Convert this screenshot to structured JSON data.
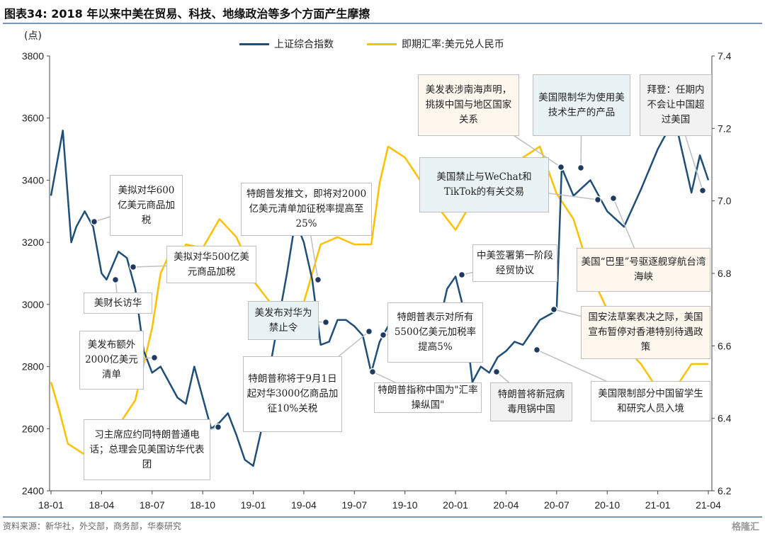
{
  "title": "图表34:  2018 年以来中美在贸易、科技、地缘政治等多个方面产生摩擦",
  "source": "资料来源：新华社，外交部，商务部，华泰研究",
  "watermark": "格隆汇",
  "chart_data": {
    "type": "line",
    "ylabel_left": "(点)",
    "ylim_left": [
      2400,
      3800
    ],
    "yticks_left": [
      2400,
      2600,
      2800,
      3000,
      3200,
      3400,
      3600,
      3800
    ],
    "ylim_right": [
      6.2,
      7.4
    ],
    "yticks_right": [
      "6.2",
      "6.4",
      "6.6",
      "6.8",
      "7.0",
      "7.2",
      "7.4"
    ],
    "xticks": [
      "18-01",
      "18-04",
      "18-07",
      "18-10",
      "19-01",
      "19-04",
      "19-07",
      "19-10",
      "20-01",
      "20-04",
      "20-07",
      "20-10",
      "21-01",
      "21-04"
    ],
    "x_unit": "months since 2018-01",
    "colors": {
      "sse": "#1f4e79",
      "cny": "#ffc000"
    },
    "series": [
      {
        "name": "上证综合指数",
        "axis": "left",
        "x": [
          0,
          0.7,
          1.2,
          1.5,
          2,
          2.5,
          3,
          3.3,
          4,
          4.5,
          5,
          5.5,
          6,
          6.5,
          7,
          7.5,
          8,
          8.5,
          9,
          9.5,
          10,
          10.5,
          11,
          11.5,
          12,
          12.5,
          13,
          14,
          14.5,
          15,
          15.5,
          16,
          16.5,
          17,
          17.5,
          18,
          18.5,
          19,
          19.5,
          20,
          21,
          21.5,
          22,
          22.5,
          23,
          23.5,
          24,
          24.5,
          25,
          25.5,
          26,
          26.5,
          27,
          27.5,
          28,
          29,
          30,
          30.3,
          31,
          32,
          33,
          34,
          35,
          36,
          37,
          37.5,
          38,
          38.5,
          39
        ],
        "values": [
          3350,
          3560,
          3200,
          3250,
          3300,
          3250,
          3100,
          3080,
          3170,
          3150,
          3050,
          2850,
          2780,
          2800,
          2750,
          2700,
          2680,
          2800,
          2700,
          2600,
          2620,
          2650,
          2580,
          2500,
          2480,
          2600,
          2800,
          3100,
          3270,
          3200,
          3080,
          2870,
          2880,
          2950,
          2950,
          2930,
          2900,
          2780,
          2880,
          2930,
          2950,
          2900,
          2880,
          2950,
          2930,
          3050,
          3090,
          2980,
          2750,
          2800,
          2780,
          2830,
          2850,
          2880,
          2870,
          2950,
          2980,
          3440,
          3350,
          3400,
          3300,
          3250,
          3370,
          3500,
          3600,
          3480,
          3360,
          3480,
          3400
        ]
      },
      {
        "name": "即期汇率:美元兑人民币",
        "axis": "right",
        "x": [
          0,
          0.5,
          1,
          2,
          3,
          3.5,
          4,
          5,
          6,
          6.5,
          7,
          7.5,
          8,
          9,
          10,
          11,
          11.5,
          12,
          13,
          14,
          15,
          16,
          17,
          18,
          19,
          19.5,
          20,
          21,
          22,
          23,
          24,
          25,
          26,
          27,
          28,
          29,
          30,
          31,
          32,
          33,
          34,
          35,
          36,
          37,
          38,
          39
        ],
        "values": [
          6.5,
          6.42,
          6.33,
          6.3,
          6.28,
          6.3,
          6.38,
          6.45,
          6.65,
          6.8,
          6.85,
          6.82,
          6.88,
          6.87,
          6.95,
          6.9,
          6.85,
          6.78,
          6.72,
          6.7,
          6.72,
          6.88,
          6.9,
          6.88,
          6.88,
          7.05,
          7.15,
          7.12,
          7.05,
          6.98,
          6.92,
          7.0,
          7.08,
          7.08,
          7.12,
          7.15,
          7.02,
          6.95,
          6.8,
          6.7,
          6.6,
          6.55,
          6.48,
          6.48,
          6.55,
          6.55
        ]
      }
    ],
    "annotations": [
      "美拟对华600亿美元商品加税",
      "美财长访华",
      "美拟对华500亿美元商品加税",
      "美发布额外2000亿美元清单",
      "习主席应约同特朗普通电话；总理会见美国访华代表团",
      "特朗普发推文，即将对2000亿美元清单加征税率提高至25%",
      "美发布对华为禁止令",
      "特朗普称将于9月1日起对华3000亿商品加征10%关税",
      "特朗普表示对所有5500亿美元加税率提高5%",
      "特朗普指称中国为\"汇率操纵国\"",
      "中美签署第一阶段经贸协议",
      "美发表涉南海声明，挑拨中国与地区国家关系",
      "美国限制华为使用美技术生产的产品",
      "拜登：任期内不会让中国超过美国",
      "美国禁止与WeChat和TikTok的有关交易",
      "美国“巴里”号驱逐舰穿航台湾海峡",
      "国安法草案表决之际，美国宣布暂停对香港特别待遇政策",
      "特朗普将新冠病毒甩锅中国",
      "美国限制部分中国留学生和研究人员入境"
    ]
  }
}
